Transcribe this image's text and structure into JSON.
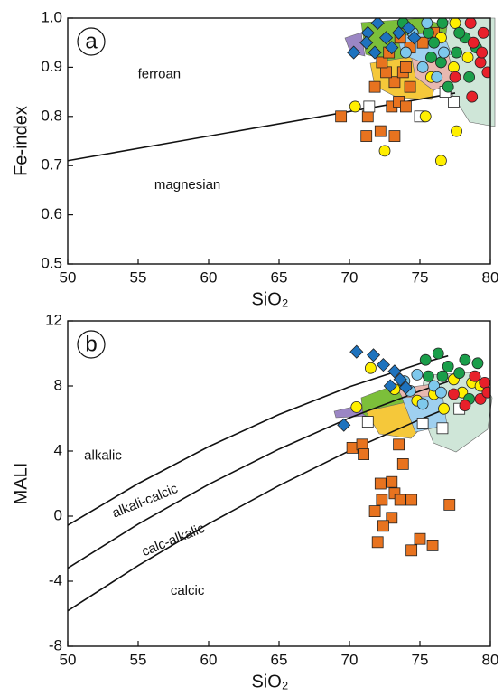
{
  "chart_data": [
    {
      "type": "scatter",
      "panel_label": "a",
      "xlabel": "SiO₂",
      "ylabel": "Fe-index",
      "xlim": [
        50,
        80
      ],
      "ylim": [
        0.5,
        1.0
      ],
      "xticks": [
        50,
        55,
        60,
        65,
        70,
        75,
        80
      ],
      "yticks": [
        0.5,
        0.6,
        0.7,
        0.8,
        0.9,
        {
          "value": 1,
          "label": "1.0"
        }
      ],
      "annotations": [
        "ferroan",
        "magnesian"
      ],
      "boundaries": [
        {
          "x": [
            50,
            77.5
          ],
          "values": [
            0.71,
            0.8475
          ]
        }
      ],
      "series": [
        {
          "color": "#e8731f",
          "marker": "square",
          "x": [
            69.4,
            71.2,
            71.3,
            72.2,
            73.2,
            73.0,
            73.5,
            74.0,
            71.8,
            73.2,
            74.3,
            72.6,
            73.8,
            72.3,
            74.0,
            72.8,
            74.3,
            75.2,
            73.6,
            76.0
          ],
          "values": [
            0.8,
            0.76,
            0.8,
            0.77,
            0.76,
            0.82,
            0.83,
            0.82,
            0.86,
            0.87,
            0.86,
            0.89,
            0.89,
            0.91,
            0.9,
            0.93,
            0.94,
            0.95,
            0.96,
            0.97
          ]
        },
        {
          "color": "#ffffff",
          "marker": "square",
          "x": [
            71.4,
            75.0,
            77.4,
            76.8
          ],
          "values": [
            0.82,
            0.8,
            0.83,
            0.85
          ]
        },
        {
          "color": "#ffef00",
          "marker": "circle",
          "x": [
            70.4,
            72.5,
            75.4,
            77.6,
            76.5,
            75.8,
            77.4,
            78.4,
            77.5,
            76.5
          ],
          "values": [
            0.82,
            0.73,
            0.8,
            0.77,
            0.71,
            0.88,
            0.9,
            0.92,
            0.99,
            0.96
          ]
        },
        {
          "color": "#1a9e4a",
          "marker": "circle",
          "x": [
            73.8,
            75.6,
            76.0,
            76.6,
            77.6,
            76.5,
            75.8,
            78.2,
            77.0,
            78.5,
            79.0,
            77.8
          ],
          "values": [
            0.99,
            0.97,
            0.95,
            0.99,
            0.93,
            0.91,
            0.92,
            0.96,
            0.86,
            0.88,
            0.94,
            0.97
          ]
        },
        {
          "color": "#e8202a",
          "marker": "circle",
          "x": [
            78.6,
            79.5,
            79.3,
            79.8,
            78.7,
            77.5,
            78.8,
            79.4
          ],
          "values": [
            0.99,
            0.97,
            0.91,
            0.89,
            0.84,
            0.88,
            0.95,
            0.93
          ]
        },
        {
          "color": "#7ec8ec",
          "marker": "circle",
          "x": [
            74.5,
            75.5,
            76.7,
            75.2,
            76.2,
            74.0
          ],
          "values": [
            0.97,
            0.99,
            0.93,
            0.9,
            0.88,
            0.93
          ]
        },
        {
          "color": "#1e73be",
          "marker": "diamond",
          "x": [
            71.3,
            72.0,
            70.3,
            71.2,
            72.6,
            73.5,
            74.2,
            73.0,
            74.6,
            71.8
          ],
          "values": [
            0.97,
            0.99,
            0.93,
            0.95,
            0.96,
            0.97,
            0.98,
            0.94,
            0.96,
            0.93
          ]
        }
      ]
    },
    {
      "type": "scatter",
      "panel_label": "b",
      "xlabel": "SiO₂",
      "ylabel": "MALI",
      "xlim": [
        50,
        80
      ],
      "ylim": [
        -8,
        12
      ],
      "xticks": [
        50,
        55,
        60,
        65,
        70,
        75,
        80
      ],
      "yticks": [
        -8,
        -4,
        0,
        4,
        8,
        12
      ],
      "annotations": [
        "alkalic",
        "alkali-calcic",
        "calc-alkalic",
        "calcic"
      ],
      "boundaries": [
        {
          "x": [
            50,
            55,
            60,
            65,
            70,
            75,
            77
          ],
          "values": [
            -0.56,
            2.0,
            4.27,
            6.25,
            7.95,
            9.37,
            9.85
          ]
        },
        {
          "x": [
            50,
            55,
            60,
            65,
            70,
            75,
            77
          ],
          "values": [
            -3.2,
            -0.49,
            1.95,
            4.12,
            6.04,
            7.69,
            8.27
          ]
        },
        {
          "x": [
            50,
            55,
            60,
            65,
            70,
            75,
            77
          ],
          "values": [
            -5.82,
            -3.04,
            -0.47,
            1.88,
            4.02,
            5.94,
            6.65
          ]
        }
      ],
      "series": [
        {
          "color": "#e8731f",
          "marker": "square",
          "x": [
            70.2,
            70.9,
            71.0,
            73.5,
            73.8,
            72.2,
            73.0,
            72.3,
            73.2,
            73.6,
            74.4,
            71.8,
            73.0,
            72.4,
            72.0,
            75.0,
            75.9,
            74.4,
            77.1
          ],
          "values": [
            4.2,
            4.4,
            3.8,
            4.4,
            3.2,
            2.0,
            2.1,
            1.0,
            1.4,
            1.0,
            1.0,
            0.3,
            -0.1,
            -0.6,
            -1.6,
            -1.4,
            -1.8,
            -2.1,
            0.7
          ]
        },
        {
          "color": "#ffffff",
          "marker": "square",
          "x": [
            71.3,
            75.2,
            76.6,
            77.8
          ],
          "values": [
            5.8,
            5.7,
            5.4,
            6.6
          ]
        },
        {
          "color": "#ffef00",
          "marker": "circle",
          "x": [
            70.5,
            71.5,
            73.2,
            74.8,
            76.0,
            77.4,
            78.7,
            79.3,
            76.7,
            78.0
          ],
          "values": [
            6.7,
            9.1,
            7.8,
            7.1,
            7.5,
            8.4,
            8.2,
            8.0,
            6.6,
            7.6
          ]
        },
        {
          "color": "#1a9e4a",
          "marker": "circle",
          "x": [
            75.4,
            76.3,
            77.0,
            78.2,
            79.1,
            76.6,
            77.8,
            78.5,
            75.6
          ],
          "values": [
            9.6,
            10.0,
            9.2,
            9.6,
            9.4,
            8.6,
            8.8,
            7.2,
            8.6
          ]
        },
        {
          "color": "#e8202a",
          "marker": "circle",
          "x": [
            78.9,
            79.6,
            79.3,
            78.2,
            79.8,
            77.4
          ],
          "values": [
            8.6,
            8.2,
            7.2,
            6.8,
            7.6,
            7.5
          ]
        },
        {
          "color": "#7ec8ec",
          "marker": "circle",
          "x": [
            74.3,
            75.2,
            76.0,
            73.9,
            76.5,
            74.8
          ],
          "values": [
            7.7,
            6.9,
            8.0,
            8.3,
            7.6,
            8.7
          ]
        },
        {
          "color": "#1e73be",
          "marker": "diamond",
          "x": [
            69.6,
            70.5,
            71.7,
            72.4,
            73.2,
            73.6,
            72.9,
            74.0
          ],
          "values": [
            5.6,
            10.1,
            9.9,
            9.3,
            8.9,
            8.4,
            8.0,
            7.9
          ]
        }
      ]
    }
  ]
}
